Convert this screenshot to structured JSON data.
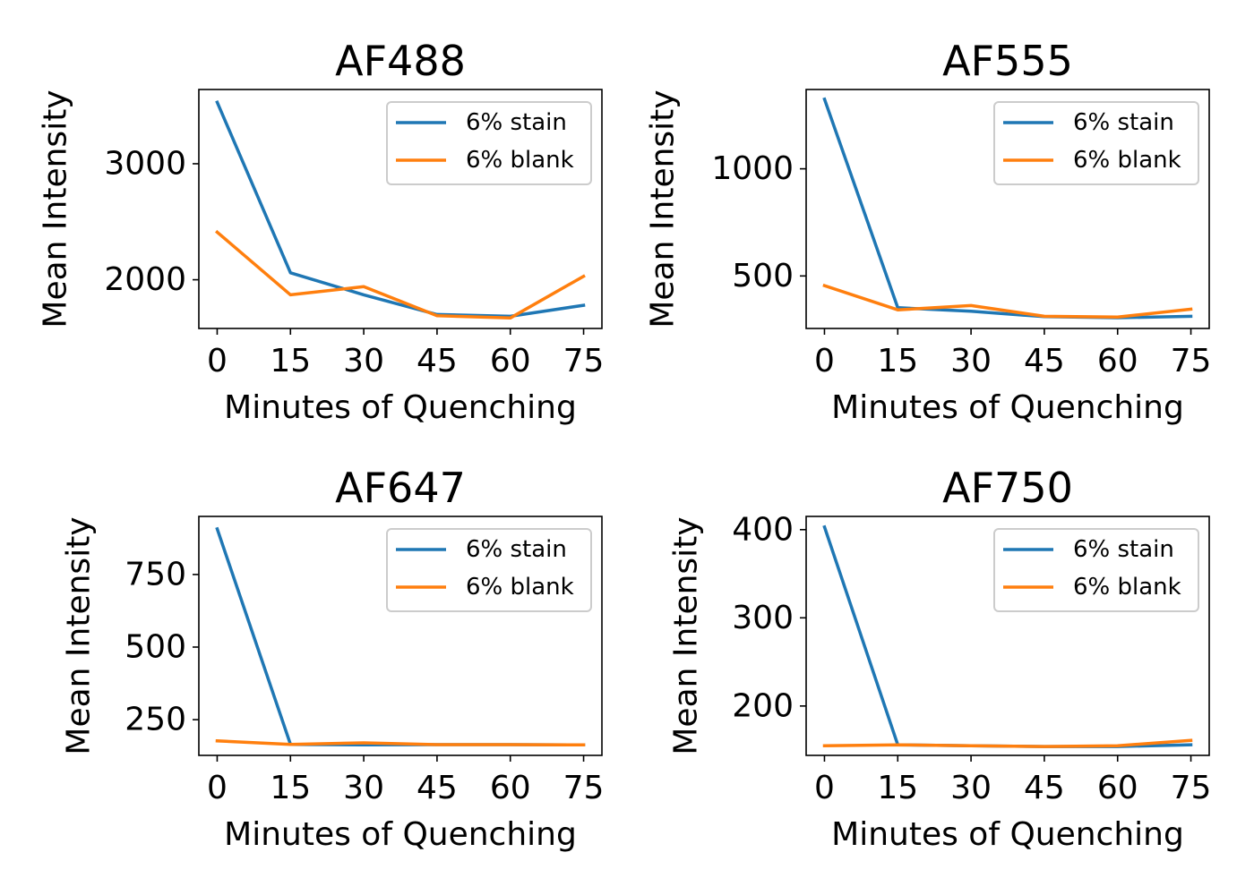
{
  "colors": {
    "stain": "#1f77b4",
    "blank": "#ff7f0e"
  },
  "chart_data": [
    {
      "type": "line",
      "title": "AF488",
      "xlabel": "Minutes of Quenching",
      "ylabel": "Mean Intensity",
      "x": [
        0,
        15,
        30,
        45,
        60,
        75
      ],
      "xticks": [
        "0",
        "15",
        "30",
        "45",
        "60",
        "75"
      ],
      "xlim": [
        -3.75,
        78.75
      ],
      "yticks": [
        2000,
        3000
      ],
      "ytick_labels": [
        "2000",
        "3000"
      ],
      "ylim": [
        1580,
        3640
      ],
      "legend": "top-right",
      "grid": false,
      "series": [
        {
          "name": "6% stain",
          "color_key": "stain",
          "values": [
            3530,
            2060,
            1870,
            1700,
            1685,
            1780
          ]
        },
        {
          "name": "6% blank",
          "color_key": "blank",
          "values": [
            2410,
            1870,
            1940,
            1690,
            1670,
            2030
          ]
        }
      ]
    },
    {
      "type": "line",
      "title": "AF555",
      "xlabel": "Minutes of Quenching",
      "ylabel": "Mean Intensity",
      "x": [
        0,
        15,
        30,
        45,
        60,
        75
      ],
      "xticks": [
        "0",
        "15",
        "30",
        "45",
        "60",
        "75"
      ],
      "xlim": [
        -3.75,
        78.75
      ],
      "yticks": [
        500,
        1000
      ],
      "ytick_labels": [
        "500",
        "1000"
      ],
      "ylim": [
        255,
        1370
      ],
      "legend": "top-right",
      "grid": false,
      "series": [
        {
          "name": "6% stain",
          "color_key": "stain",
          "values": [
            1325,
            352,
            335,
            310,
            305,
            312
          ]
        },
        {
          "name": "6% blank",
          "color_key": "blank",
          "values": [
            455,
            342,
            362,
            312,
            308,
            345
          ]
        }
      ]
    },
    {
      "type": "line",
      "title": "AF647",
      "xlabel": "Minutes of Quenching",
      "ylabel": "Mean Intensity",
      "x": [
        0,
        15,
        30,
        45,
        60,
        75
      ],
      "xticks": [
        "0",
        "15",
        "30",
        "45",
        "60",
        "75"
      ],
      "xlim": [
        -3.75,
        78.75
      ],
      "yticks": [
        250,
        500,
        750
      ],
      "ytick_labels": [
        "250",
        "500",
        "750"
      ],
      "ylim": [
        127,
        950
      ],
      "legend": "top-right",
      "grid": false,
      "series": [
        {
          "name": "6% stain",
          "color_key": "stain",
          "values": [
            907,
            165,
            163,
            164,
            164,
            163
          ]
        },
        {
          "name": "6% blank",
          "color_key": "blank",
          "values": [
            177,
            165,
            170,
            164,
            164,
            163
          ]
        }
      ]
    },
    {
      "type": "line",
      "title": "AF750",
      "xlabel": "Minutes of Quenching",
      "ylabel": "Mean Intensity",
      "x": [
        0,
        15,
        30,
        45,
        60,
        75
      ],
      "xticks": [
        "0",
        "15",
        "30",
        "45",
        "60",
        "75"
      ],
      "xlim": [
        -3.75,
        78.75
      ],
      "yticks": [
        200,
        300,
        400
      ],
      "ytick_labels": [
        "200",
        "300",
        "400"
      ],
      "ylim": [
        144,
        415
      ],
      "legend": "top-right",
      "grid": false,
      "series": [
        {
          "name": "6% stain",
          "color_key": "stain",
          "values": [
            403,
            156,
            155,
            154,
            154,
            156
          ]
        },
        {
          "name": "6% blank",
          "color_key": "blank",
          "values": [
            155,
            156,
            155,
            154,
            155,
            161
          ]
        }
      ]
    }
  ]
}
